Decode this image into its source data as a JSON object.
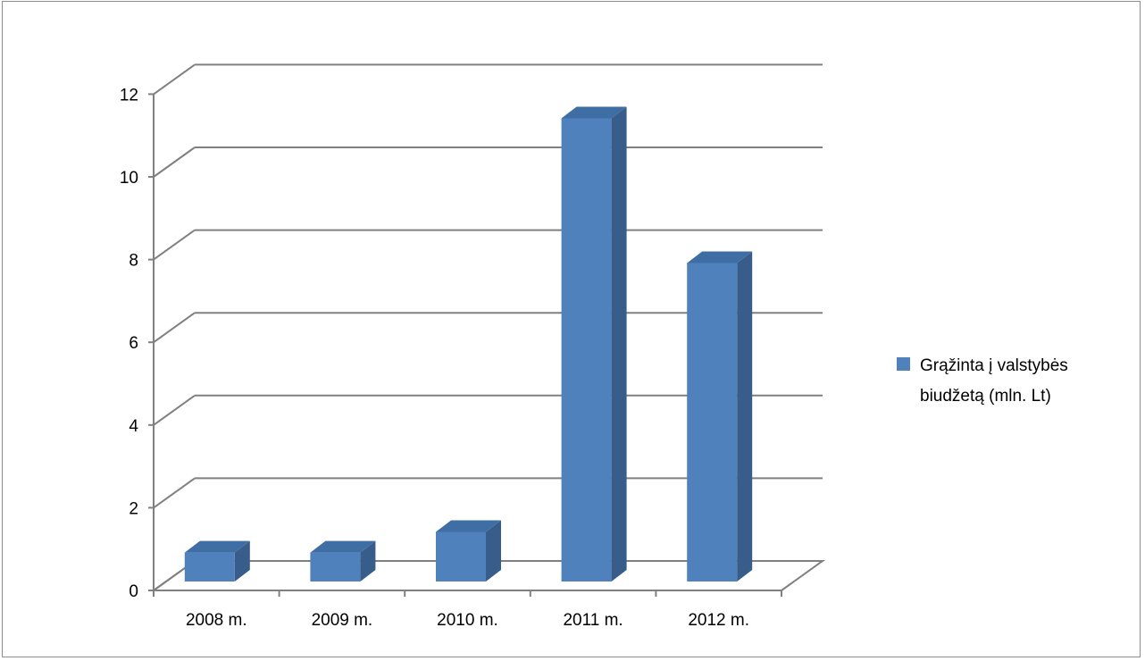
{
  "chart_data": {
    "type": "bar",
    "style": "3d-column",
    "categories": [
      "2008 m.",
      "2009 m.",
      "2010 m.",
      "2011 m.",
      "2012 m."
    ],
    "series": [
      {
        "name": "Grąžinta į valstybės biudžetą (mln. Lt)",
        "color": "#4f81bd",
        "values": [
          0.7,
          0.7,
          1.2,
          11.2,
          7.7
        ]
      }
    ],
    "title": "",
    "xlabel": "",
    "ylabel": "",
    "ylim": [
      0,
      12
    ],
    "yticks": [
      "0",
      "2",
      "4",
      "6",
      "8",
      "10",
      "12"
    ],
    "grid": true,
    "legend": "right",
    "legend_lines": [
      "Grąžinta į valstybės",
      "biudžetą (mln. Lt)"
    ]
  },
  "colors": {
    "bar_front": "#4f81bd",
    "bar_side": "#385d8a",
    "bar_top": "#3f6ea5",
    "grid": "#808080",
    "frame": "#8c8c8c"
  }
}
